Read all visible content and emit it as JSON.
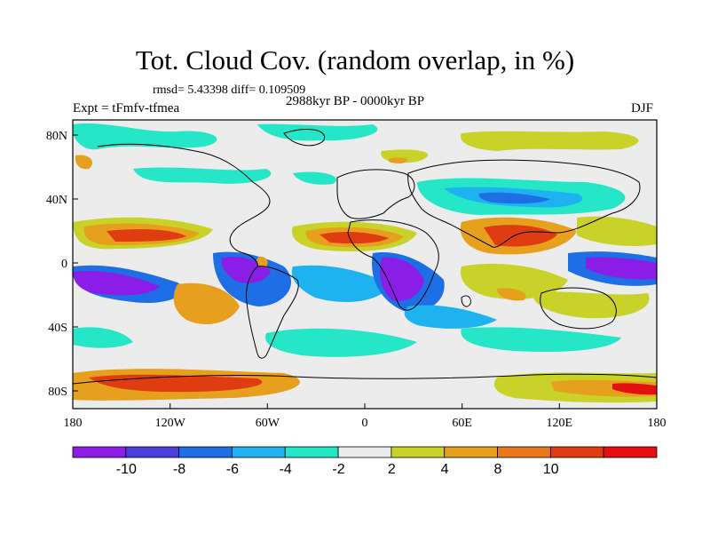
{
  "title": "Tot. Cloud Cov. (random overlap, in %)",
  "stats": "rmsd= 5.43398 diff= 0.109509",
  "experiment": "Expt = tFmfv-tfmea",
  "period": "2988kyr BP - 0000kyr BP",
  "season": "DJF",
  "lon_ticks": [
    "180",
    "120W",
    "60W",
    "0",
    "60E",
    "120E",
    "180"
  ],
  "lat_ticks": [
    "80N",
    "40N",
    "0",
    "40S",
    "80S"
  ],
  "colorbar": {
    "levels": [
      "-10",
      "-8",
      "-6",
      "-4",
      "-2",
      "2",
      "4",
      "8",
      "10"
    ],
    "colors": [
      "#8a1ee6",
      "#4b3ed9",
      "#1e6ee6",
      "#1eb2f0",
      "#26e6c8",
      "#ececec",
      "#c8d228",
      "#e6a01e",
      "#e6781e",
      "#e03c12",
      "#e41010"
    ]
  }
}
